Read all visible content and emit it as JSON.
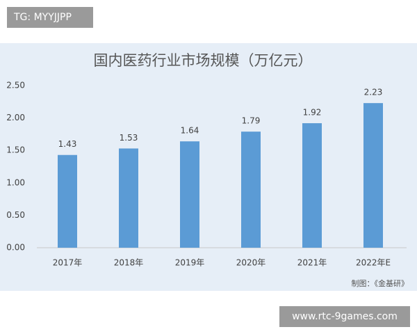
{
  "chart_data": {
    "type": "bar",
    "title": "国内医药行业市场规模（万亿元）",
    "categories": [
      "2017年",
      "2018年",
      "2019年",
      "2020年",
      "2021年",
      "2022年E"
    ],
    "values": [
      1.43,
      1.53,
      1.64,
      1.79,
      1.92,
      2.23
    ],
    "color": "#5b9bd5",
    "ylim": [
      0,
      2.5
    ],
    "yticks": [
      {
        "value": 0,
        "label": "0.00"
      },
      {
        "value": 0.5,
        "label": "0.50"
      },
      {
        "value": 1,
        "label": "1.00"
      },
      {
        "value": 1.5,
        "label": "1.50"
      },
      {
        "value": 2,
        "label": "2.00"
      },
      {
        "value": 2.5,
        "label": "2.50"
      }
    ],
    "grid": false,
    "source": "制图：《金基研》"
  },
  "watermarks": {
    "top": "TG: MYYJJPP",
    "bottom": "www.rtc-9games.com"
  }
}
